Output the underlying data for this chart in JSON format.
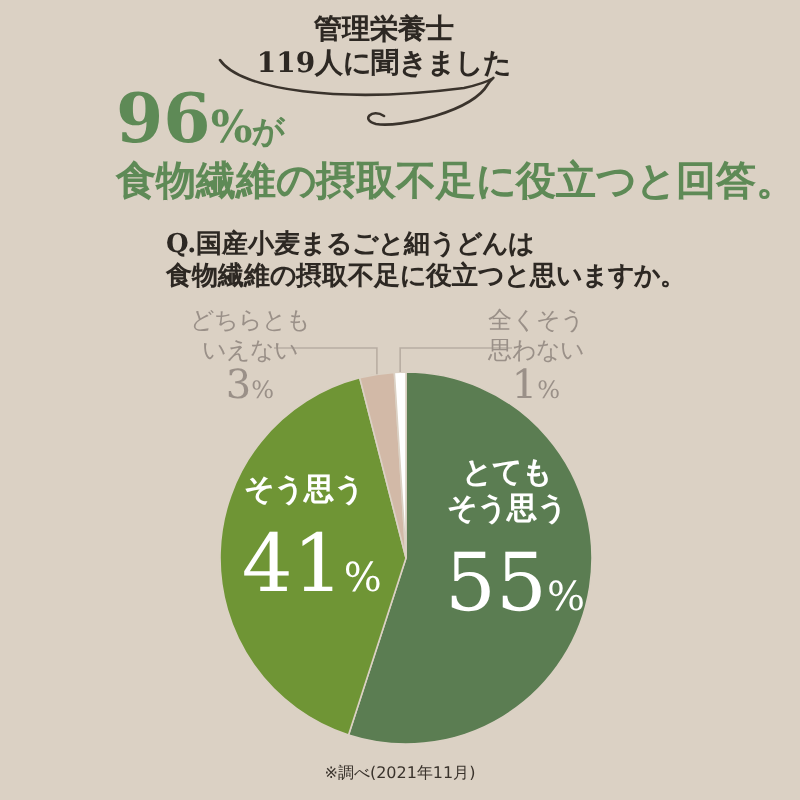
{
  "chart_data": {
    "type": "pie",
    "subtitle": "管理栄養士119人に聞きました",
    "title": "96%が食物繊維の摂取不足に役立つと回答。",
    "annotations": [
      "Q.国産小麦まるごと細うどんは食物繊維の摂取不足に役立つと思いますか。",
      "※調べ(2021年11月)"
    ],
    "categories": [
      "とてもそう思う",
      "そう思う",
      "どちらともいえない",
      "全くそう思わない"
    ],
    "values": [
      55,
      41,
      3,
      1
    ],
    "colors": [
      "#5b7d52",
      "#6f9535",
      "#d2b9a7",
      "#ffffff"
    ],
    "value_labels": [
      "55%",
      "41%",
      "3%",
      "1%"
    ]
  }
}
